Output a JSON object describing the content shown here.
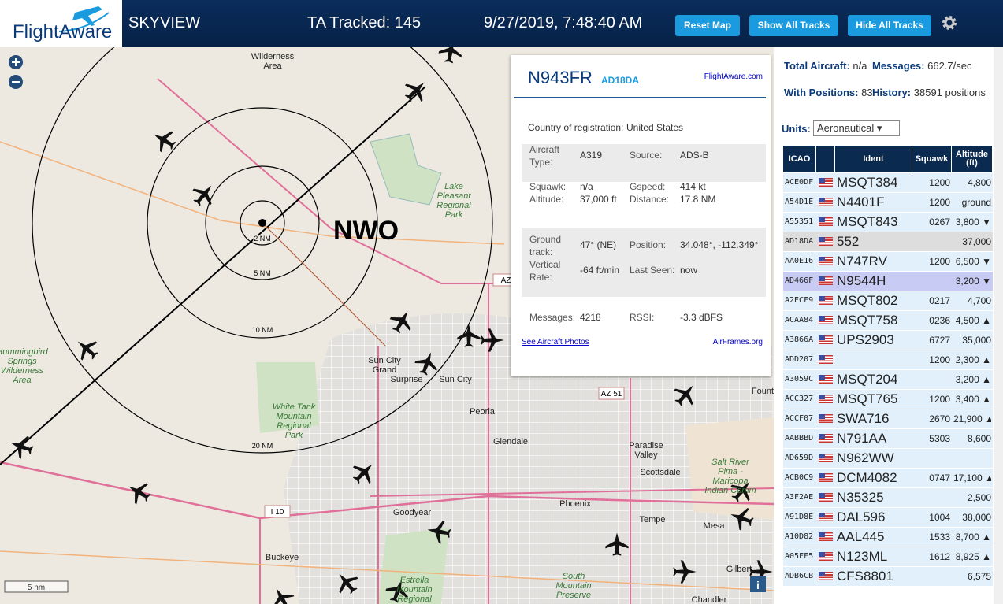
{
  "header": {
    "logo": "FlightAware",
    "app": "SKYVIEW",
    "tracked": "TA Tracked: 145",
    "datetime": "9/27/2019, 7:48:40 AM",
    "buttons": [
      "Reset Map",
      "Show All Tracks",
      "Hide All Tracks"
    ]
  },
  "map": {
    "site": "NWO",
    "rings": [
      "2 NM",
      "5 NM",
      "10 NM",
      "20 NM"
    ],
    "scale": "5 nm",
    "info": "i",
    "places": [
      "Wilderness Area",
      "Lake Pleasant Regional Park",
      "Hummingbird Springs Wilderness Area",
      "Sun City Grand",
      "Surprise",
      "Sun City",
      "Peoria",
      "Glendale",
      "Paradise Valley",
      "Scottsdale",
      "Phoenix",
      "Tempe",
      "Mesa",
      "Goodyear",
      "Buckeye",
      "White Tank Mountain Regional Park",
      "Estrella Mountain Regional Park",
      "South Mountain Preserve",
      "Salt River Pima - Maricopa Indian Comm",
      "Gilbert",
      "Fount",
      "Chandler"
    ],
    "roads": [
      "AZ",
      "AZ 51",
      "I 10"
    ]
  },
  "popup": {
    "ident": "N943FR",
    "hex": "AD18DA",
    "link": "FlightAware.com",
    "country": {
      "label": "Country of registration:",
      "value": "United States"
    },
    "rows": [
      [
        {
          "label": "Aircraft Type:",
          "value": "A319"
        },
        {
          "label": "Source:",
          "value": "ADS-B"
        }
      ],
      [
        {
          "label": "Squawk:",
          "value": "n/a"
        },
        {
          "label": "Gspeed:",
          "value": "414 kt"
        }
      ],
      [
        {
          "label": "Altitude:",
          "value": "37,000 ft"
        },
        {
          "label": "Distance:",
          "value": "17.8 NM"
        }
      ],
      [
        {
          "label": "Ground track:",
          "value": "47° (NE)"
        },
        {
          "label": "Position:",
          "value": "34.048°, -112.349°"
        }
      ],
      [
        {
          "label": "Vertical Rate:",
          "value": "-64 ft/min"
        },
        {
          "label": "Last Seen:",
          "value": "now"
        }
      ],
      [
        {
          "label": "Messages:",
          "value": "4218"
        },
        {
          "label": "RSSI:",
          "value": "-3.3 dBFS"
        }
      ]
    ],
    "photos": "See Aircraft Photos",
    "airframes": "AirFrames.org"
  },
  "sidebar": {
    "stats": [
      {
        "label": "Total Aircraft:",
        "value": "n/a"
      },
      {
        "label": "Messages:",
        "value": "662.7/sec"
      },
      {
        "label": "With Positions:",
        "value": "83"
      },
      {
        "label": "History:",
        "value": "38591 positions"
      }
    ],
    "units_label": "Units:",
    "units": "Aeronautical"
  },
  "table": {
    "columns": [
      "ICAO",
      "Ident",
      "Squawk",
      "Altitude (ft)"
    ],
    "rows": [
      {
        "icao": "ACE0DF",
        "ident": "MSQT384",
        "squawk": "1200",
        "altitude": "4,800"
      },
      {
        "icao": "A54D1E",
        "ident": "N4401F",
        "squawk": "1200",
        "altitude": "ground"
      },
      {
        "icao": "A55351",
        "ident": "MSQT843",
        "squawk": "0267",
        "altitude": "3,800 ▼"
      },
      {
        "icao": "AD18DA",
        "ident": "552",
        "squawk": null,
        "altitude": "37,000"
      },
      {
        "icao": "AA0E16",
        "ident": "N747RV",
        "squawk": "1200",
        "altitude": "6,500 ▼"
      },
      {
        "icao": "AD466F",
        "ident": "N9544H",
        "squawk": null,
        "altitude": "3,200 ▼"
      },
      {
        "icao": "A2ECF9",
        "ident": "MSQT802",
        "squawk": "0217",
        "altitude": "4,700"
      },
      {
        "icao": "ACAA84",
        "ident": "MSQT758",
        "squawk": "0236",
        "altitude": "4,500 ▲"
      },
      {
        "icao": "A3866A",
        "ident": "UPS2903",
        "squawk": "6727",
        "altitude": "35,000"
      },
      {
        "icao": "ADD207",
        "ident": null,
        "squawk": "1200",
        "altitude": "2,300 ▲"
      },
      {
        "icao": "A3059C",
        "ident": "MSQT204",
        "squawk": null,
        "altitude": "3,200 ▲"
      },
      {
        "icao": "ACC327",
        "ident": "MSQT765",
        "squawk": "1200",
        "altitude": "3,400 ▲"
      },
      {
        "icao": "ACCF07",
        "ident": "SWA716",
        "squawk": "2670",
        "altitude": "21,900 ▲"
      },
      {
        "icao": "AABBBD",
        "ident": "N791AA",
        "squawk": "5303",
        "altitude": "8,600"
      },
      {
        "icao": "AD659D",
        "ident": "N962WW",
        "squawk": null,
        "altitude": null
      },
      {
        "icao": "ACB0C9",
        "ident": "DCM4082",
        "squawk": "0747",
        "altitude": "17,100 ▲"
      },
      {
        "icao": "A3F2AE",
        "ident": "N35325",
        "squawk": null,
        "altitude": "2,500"
      },
      {
        "icao": "A91D8E",
        "ident": "DAL596",
        "squawk": "1004",
        "altitude": "38,000"
      },
      {
        "icao": "A10D82",
        "ident": "AAL445",
        "squawk": "1533",
        "altitude": "8,700 ▲"
      },
      {
        "icao": "A05FF5",
        "ident": "N123ML",
        "squawk": "1612",
        "altitude": "8,925 ▲"
      },
      {
        "icao": "ADB6CB",
        "ident": "CFS8801",
        "squawk": null,
        "altitude": "6,575"
      }
    ]
  }
}
